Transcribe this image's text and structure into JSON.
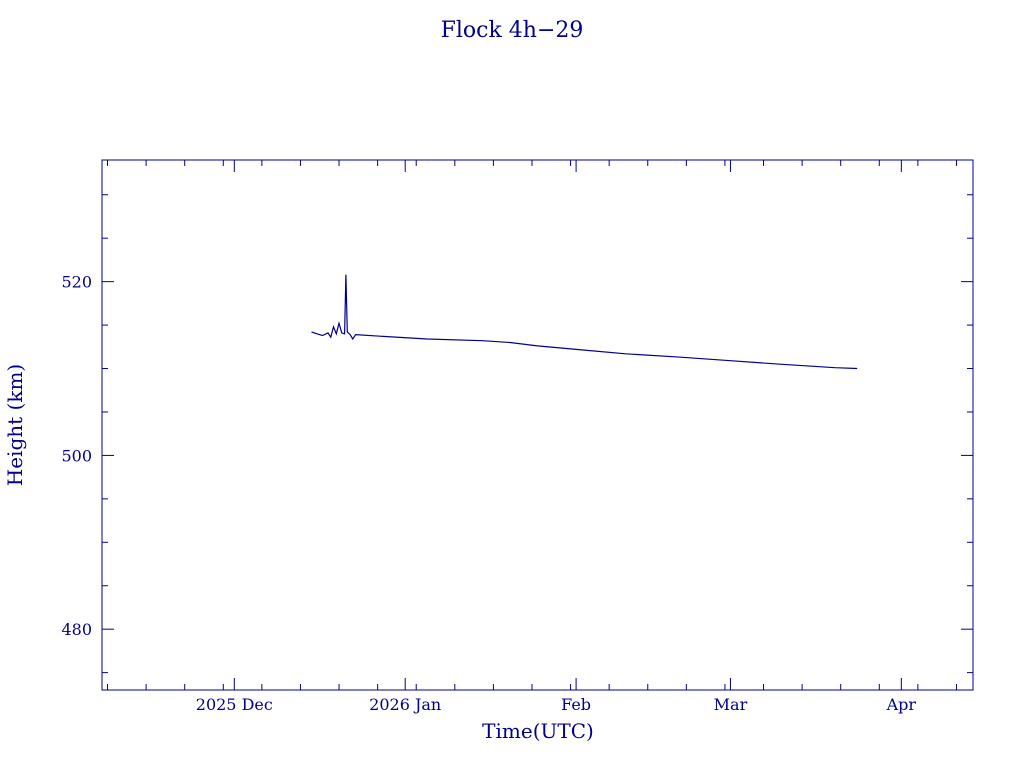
{
  "chart_data": {
    "type": "line",
    "title": "Flock 4h−29",
    "xlabel": "Time(UTC)",
    "ylabel": "Height (km)",
    "color": "#00008b",
    "x_range": [
      "2025-11-07",
      "2026-04-14"
    ],
    "y_range": [
      473,
      534
    ],
    "x_ticks": [
      {
        "date": "2025-12-01",
        "label": "2025 Dec"
      },
      {
        "date": "2026-01-01",
        "label": "2026 Jan"
      },
      {
        "date": "2026-02-01",
        "label": "Feb"
      },
      {
        "date": "2026-03-01",
        "label": "Mar"
      },
      {
        "date": "2026-04-01",
        "label": "Apr"
      }
    ],
    "y_ticks": [
      480,
      500,
      520
    ],
    "x_minor_ticks": [
      "2025-11-08",
      "2025-11-15",
      "2025-11-22",
      "2025-11-29",
      "2025-12-06",
      "2025-12-13",
      "2025-12-20",
      "2025-12-27",
      "2026-01-03",
      "2026-01-10",
      "2026-01-17",
      "2026-01-24",
      "2026-01-31",
      "2026-02-07",
      "2026-02-14",
      "2026-02-21",
      "2026-02-28",
      "2026-03-07",
      "2026-03-14",
      "2026-03-21",
      "2026-03-28",
      "2026-04-04",
      "2026-04-11"
    ],
    "y_minor_ticks": [
      475,
      485,
      490,
      495,
      505,
      510,
      515,
      525,
      530
    ],
    "grid": false,
    "series": [
      {
        "points": [
          [
            "2025-12-15",
            514.2
          ],
          [
            "2025-12-16",
            514.0
          ],
          [
            "2025-12-17",
            513.8
          ],
          [
            "2025-12-18",
            514.1
          ],
          [
            "2025-12-18T12:00",
            513.6
          ],
          [
            "2025-12-19",
            514.8
          ],
          [
            "2025-12-19T12:00",
            514.0
          ],
          [
            "2025-12-20",
            515.2
          ],
          [
            "2025-12-20T12:00",
            514.1
          ],
          [
            "2025-12-21",
            514.0
          ],
          [
            "2025-12-21T06:00",
            520.8
          ],
          [
            "2025-12-21T12:00",
            514.2
          ],
          [
            "2025-12-22",
            513.9
          ],
          [
            "2025-12-22T12:00",
            513.4
          ],
          [
            "2025-12-23",
            513.9
          ],
          [
            "2025-12-28",
            513.7
          ],
          [
            "2026-01-05",
            513.4
          ],
          [
            "2026-01-15",
            513.2
          ],
          [
            "2026-01-20",
            513.0
          ],
          [
            "2026-01-25",
            512.6
          ],
          [
            "2026-02-01",
            512.2
          ],
          [
            "2026-02-10",
            511.7
          ],
          [
            "2026-02-20",
            511.3
          ],
          [
            "2026-03-01",
            510.9
          ],
          [
            "2026-03-10",
            510.5
          ],
          [
            "2026-03-20",
            510.1
          ],
          [
            "2026-03-24",
            510.0
          ]
        ]
      }
    ]
  }
}
